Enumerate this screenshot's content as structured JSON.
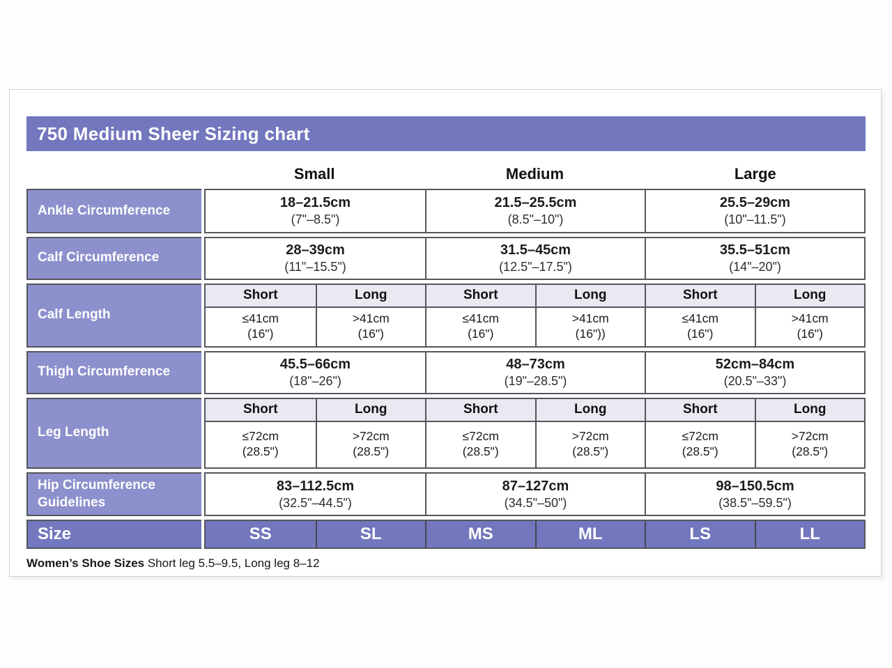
{
  "chart_data": {
    "type": "table",
    "title": "750 Medium Sheer Sizing chart",
    "columns": [
      "Small",
      "Medium",
      "Large"
    ],
    "sub_columns": [
      "Short",
      "Long"
    ],
    "rows": {
      "ankle": {
        "label": "Ankle Circumference",
        "values": [
          {
            "cm": "18–21.5cm",
            "inches": "(7\"–8.5\")"
          },
          {
            "cm": "21.5–25.5cm",
            "inches": "(8.5\"–10\")"
          },
          {
            "cm": "25.5–29cm",
            "inches": "(10\"–11.5\")"
          }
        ]
      },
      "calf_circumference": {
        "label": "Calf Circumference",
        "values": [
          {
            "cm": "28–39cm",
            "inches": "(11\"–15.5\")"
          },
          {
            "cm": "31.5–45cm",
            "inches": "(12.5\"–17.5\")"
          },
          {
            "cm": "35.5–51cm",
            "inches": "(14\"–20\")"
          }
        ]
      },
      "calf_length": {
        "label": "Calf Length",
        "values": [
          {
            "cm": "≤41cm",
            "inches": "(16\")"
          },
          {
            "cm": ">41cm",
            "inches": "(16\")"
          },
          {
            "cm": "≤41cm",
            "inches": "(16\")"
          },
          {
            "cm": ">41cm",
            "inches": "(16\"))"
          },
          {
            "cm": "≤41cm",
            "inches": "(16\")"
          },
          {
            "cm": ">41cm",
            "inches": "(16\")"
          }
        ]
      },
      "thigh_circumference": {
        "label": "Thigh Circumference",
        "values": [
          {
            "cm": "45.5–66cm",
            "inches": "(18\"–26\")"
          },
          {
            "cm": "48–73cm",
            "inches": "(19\"–28.5\")"
          },
          {
            "cm": "52cm–84cm",
            "inches": "(20.5\"–33\")"
          }
        ]
      },
      "leg_length": {
        "label": "Leg Length",
        "values": [
          {
            "cm": "≤72cm",
            "inches": "(28.5\")"
          },
          {
            "cm": ">72cm",
            "inches": "(28.5\")"
          },
          {
            "cm": "≤72cm",
            "inches": "(28.5\")"
          },
          {
            "cm": ">72cm",
            "inches": "(28.5\")"
          },
          {
            "cm": "≤72cm",
            "inches": "(28.5\")"
          },
          {
            "cm": ">72cm",
            "inches": "(28.5\")"
          }
        ]
      },
      "hip_circumference": {
        "label": "Hip Circumference Guidelines",
        "values": [
          {
            "cm": "83–112.5cm",
            "inches": "(32.5\"–44.5\")"
          },
          {
            "cm": "87–127cm",
            "inches": "(34.5\"–50\")"
          },
          {
            "cm": "98–150.5cm",
            "inches": "(38.5\"–59.5\")"
          }
        ]
      },
      "size": {
        "label": "Size",
        "values": [
          "SS",
          "SL",
          "MS",
          "ML",
          "LS",
          "LL"
        ]
      }
    },
    "footnote": {
      "bold": "Women’s Shoe Sizes",
      "text": " Short leg 5.5–9.5, Long leg 8–12"
    }
  },
  "colors": {
    "header_purple": "#7277BE",
    "label_purple": "#8C90CC",
    "subheader_lavender": "#E9E9F2",
    "border_gray": "#55565C",
    "text_black": "#1c1c1c",
    "text_white": "#ffffff"
  }
}
